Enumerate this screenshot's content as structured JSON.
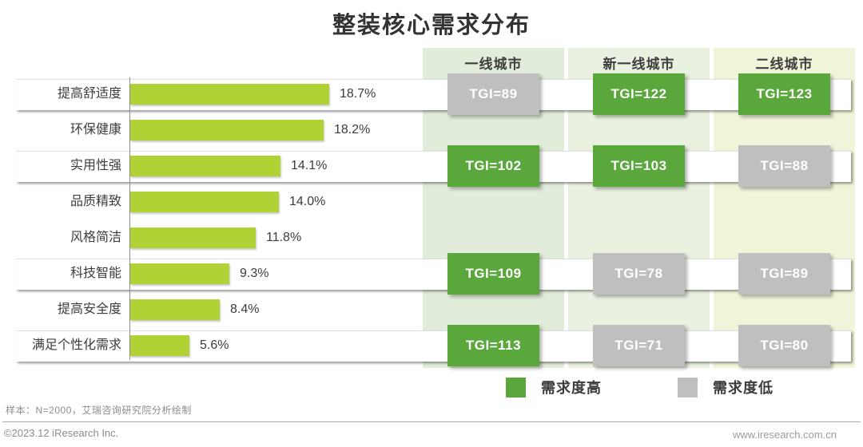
{
  "title": "整装核心需求分布",
  "chart_data": {
    "type": "bar",
    "orientation": "horizontal",
    "title": "整装核心需求分布",
    "categories": [
      "提高舒适度",
      "环保健康",
      "实用性强",
      "品质精致",
      "风格简洁",
      "科技智能",
      "提高安全度",
      "满足个性化需求"
    ],
    "values": [
      18.7,
      18.2,
      14.1,
      14.0,
      11.8,
      9.3,
      8.4,
      5.6
    ],
    "value_labels": [
      "18.7%",
      "18.2%",
      "14.1%",
      "14.0%",
      "11.8%",
      "9.3%",
      "8.4%",
      "5.6%"
    ],
    "unit": "%",
    "xlabel": "",
    "ylabel": "",
    "xlim": [
      0,
      20
    ],
    "grid": false,
    "bar_color": "#b0d234"
  },
  "tgi_table": {
    "columns": [
      "一线城市",
      "新一线城市",
      "二线城市"
    ],
    "column_bg": [
      "#e2ecda",
      "#e9f1e1",
      "#f0f4d8"
    ],
    "rows": [
      {
        "category": "提高舒适度",
        "cells": [
          {
            "label": "TGI=89",
            "value": 89,
            "level": "low"
          },
          {
            "label": "TGI=122",
            "value": 122,
            "level": "high"
          },
          {
            "label": "TGI=123",
            "value": 123,
            "level": "high"
          }
        ]
      },
      {
        "category": "实用性强",
        "cells": [
          {
            "label": "TGI=102",
            "value": 102,
            "level": "high"
          },
          {
            "label": "TGI=103",
            "value": 103,
            "level": "high"
          },
          {
            "label": "TGI=88",
            "value": 88,
            "level": "low"
          }
        ]
      },
      {
        "category": "科技智能",
        "cells": [
          {
            "label": "TGI=109",
            "value": 109,
            "level": "high"
          },
          {
            "label": "TGI=78",
            "value": 78,
            "level": "low"
          },
          {
            "label": "TGI=89",
            "value": 89,
            "level": "low"
          }
        ]
      },
      {
        "category": "满足个性化需求",
        "cells": [
          {
            "label": "TGI=113",
            "value": 113,
            "level": "high"
          },
          {
            "label": "TGI=71",
            "value": 71,
            "level": "low"
          },
          {
            "label": "TGI=80",
            "value": 80,
            "level": "low"
          }
        ]
      }
    ]
  },
  "legend": [
    {
      "label": "需求度高",
      "color": "#5aa83c"
    },
    {
      "label": "需求度低",
      "color": "#bfbfbf"
    }
  ],
  "footer": {
    "note": "样本：N=2000，艾瑞咨询研究院分析绘制",
    "copyright": "©2023.12 iResearch Inc.",
    "website": "www.iresearch.com.cn"
  }
}
